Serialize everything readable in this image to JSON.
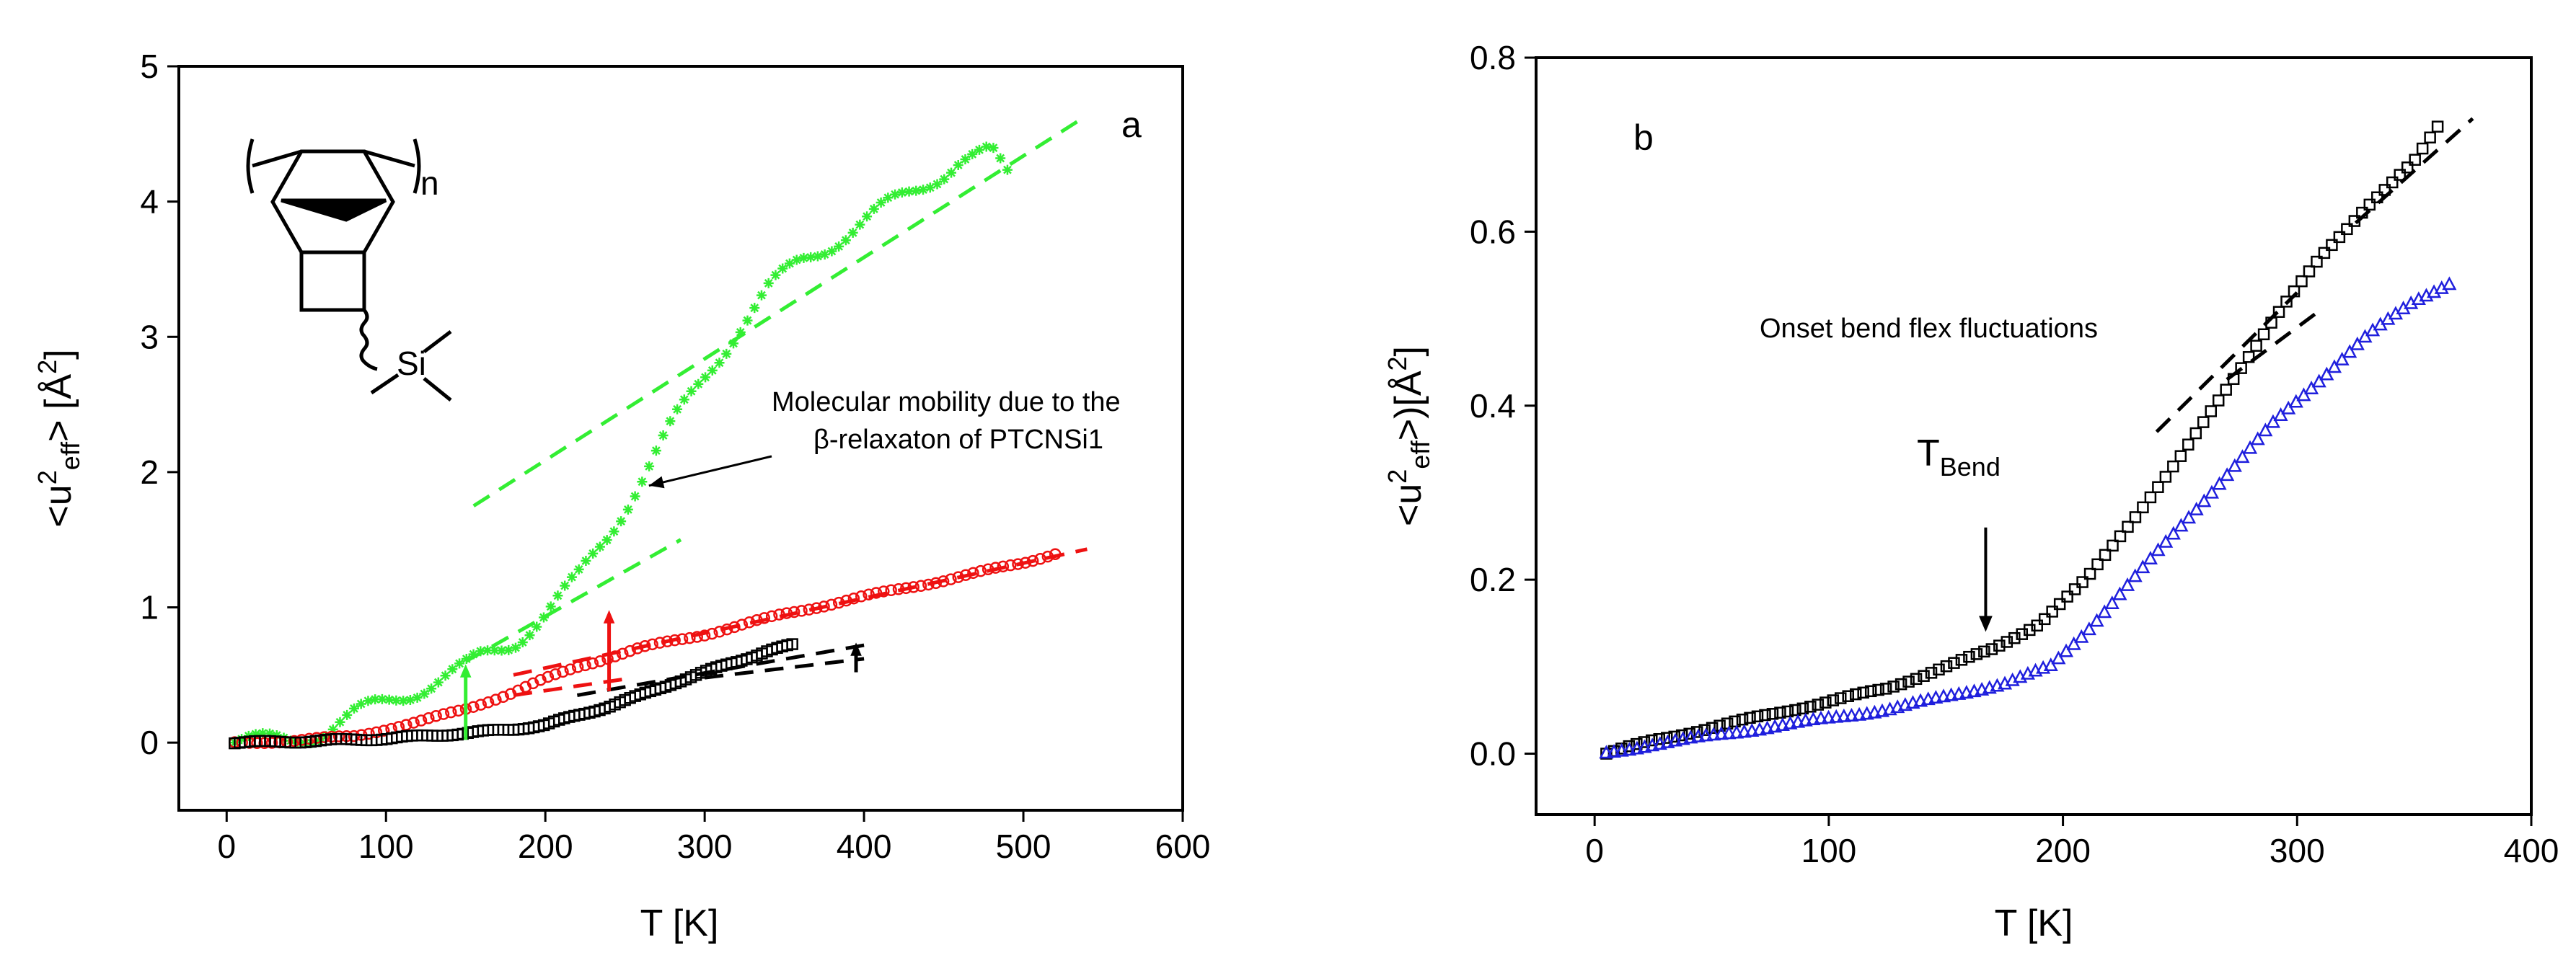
{
  "chart_data": [
    {
      "panel": "a",
      "type": "scatter",
      "title": "",
      "xlabel": "T [K]",
      "ylabel": "<u²eff> [Å²]",
      "ylabel_parts": {
        "open": "<u",
        "sup": "2",
        "sub": "eff",
        "close": "> [Å",
        "sup2": "2",
        "end": "]"
      },
      "xlim": [
        -30,
        600
      ],
      "ylim": [
        -0.5,
        5
      ],
      "xticks": [
        "0",
        "100",
        "200",
        "300",
        "400",
        "500",
        "600"
      ],
      "yticks": [
        "0",
        "1",
        "2",
        "3",
        "4",
        "5"
      ],
      "grid": false,
      "legend": "none",
      "series": [
        {
          "color": "#33ee33",
          "marker": "star",
          "x": [
            5,
            20,
            40,
            60,
            80,
            100,
            120,
            140,
            150,
            160,
            180,
            200,
            220,
            240,
            260,
            280,
            300,
            320,
            340,
            360,
            380,
            400,
            420,
            440,
            460,
            480,
            490
          ],
          "y": [
            0.0,
            0.0,
            0.03,
            0.08,
            0.2,
            0.3,
            0.4,
            0.5,
            0.55,
            0.63,
            0.75,
            0.95,
            1.2,
            1.55,
            1.95,
            2.35,
            2.7,
            3.05,
            3.35,
            3.55,
            3.7,
            3.85,
            4.0,
            4.15,
            4.3,
            4.35,
            4.2
          ]
        },
        {
          "color": "#ee1111",
          "marker": "circle",
          "x": [
            5,
            40,
            80,
            120,
            150,
            180,
            200,
            220,
            240,
            260,
            300,
            350,
            400,
            450,
            500,
            520
          ],
          "y": [
            0.0,
            0.01,
            0.05,
            0.15,
            0.25,
            0.37,
            0.47,
            0.56,
            0.63,
            0.7,
            0.8,
            0.95,
            1.08,
            1.2,
            1.33,
            1.4
          ]
        },
        {
          "color": "#000000",
          "marker": "square",
          "x": [
            5,
            50,
            100,
            150,
            180,
            200,
            220,
            240,
            260,
            280,
            300,
            320,
            340,
            355
          ],
          "y": [
            0.0,
            0.01,
            0.03,
            0.07,
            0.1,
            0.13,
            0.2,
            0.27,
            0.35,
            0.44,
            0.52,
            0.6,
            0.68,
            0.72
          ]
        }
      ],
      "fit_lines": [
        {
          "color": "#33ee33",
          "x": [
            155,
            535
          ],
          "y": [
            1.75,
            4.6
          ]
        },
        {
          "color": "#33ee33",
          "x": [
            150,
            285
          ],
          "y": [
            0.6,
            1.5
          ]
        },
        {
          "color": "#ee1111",
          "x": [
            180,
            540
          ],
          "y": [
            0.5,
            1.43
          ]
        },
        {
          "color": "#ee1111",
          "x": [
            180,
            250
          ],
          "y": [
            0.35,
            0.47
          ]
        },
        {
          "color": "#000000",
          "x": [
            220,
            400
          ],
          "y": [
            0.35,
            0.72
          ]
        },
        {
          "color": "#000000",
          "x": [
            300,
            400
          ],
          "y": [
            0.48,
            0.62
          ]
        }
      ],
      "arrows": [
        {
          "color": "#33ee33",
          "x": 150,
          "y_from": 0.02,
          "y_to": 0.58
        },
        {
          "color": "#ee1111",
          "x": 240,
          "y_from": 0.38,
          "y_to": 0.98
        },
        {
          "color": "#000000",
          "x": 395,
          "y_from": 0.52,
          "y_to": 0.74
        }
      ],
      "annotation": {
        "lines": [
          "Molecular mobility due to the",
          "β-relaxaton of PTCNSi1"
        ],
        "arrow_to": {
          "x": 265,
          "y": 1.9
        }
      },
      "structure_labels": {
        "repeat_index": "n",
        "silicon": "Si"
      }
    },
    {
      "panel": "b",
      "type": "scatter",
      "title": "",
      "xlabel": "T [K]",
      "ylabel": "<u²eff>)[Å²]",
      "ylabel_parts": {
        "open": "<u",
        "sup": "2",
        "sub": "eff",
        "close": ">)[Å",
        "sup2": "2",
        "end": "]"
      },
      "xlim": [
        -25,
        400
      ],
      "ylim": [
        -0.07,
        0.8
      ],
      "xticks": [
        "0",
        "100",
        "200",
        "300",
        "400"
      ],
      "yticks": [
        "0.0",
        "0.2",
        "0.4",
        "0.6",
        "0.8"
      ],
      "grid": false,
      "legend": "none",
      "series": [
        {
          "color": "#000000",
          "marker": "square",
          "x": [
            5,
            25,
            50,
            75,
            100,
            125,
            150,
            170,
            190,
            210,
            230,
            250,
            270,
            290,
            310,
            330,
            350,
            360
          ],
          "y": [
            0.0,
            0.015,
            0.03,
            0.045,
            0.06,
            0.075,
            0.1,
            0.12,
            0.15,
            0.2,
            0.27,
            0.34,
            0.42,
            0.5,
            0.57,
            0.63,
            0.68,
            0.72
          ]
        },
        {
          "color": "#1f1fdd",
          "marker": "triangle",
          "x": [
            5,
            25,
            50,
            75,
            100,
            125,
            150,
            175,
            195,
            210,
            230,
            250,
            270,
            290,
            310,
            330,
            350,
            365
          ],
          "y": [
            0.0,
            0.01,
            0.02,
            0.03,
            0.04,
            0.05,
            0.065,
            0.08,
            0.1,
            0.14,
            0.2,
            0.26,
            0.32,
            0.38,
            0.43,
            0.48,
            0.52,
            0.54
          ]
        }
      ],
      "fit_lines": [
        {
          "color": "#000000",
          "x": [
            240,
            300
          ],
          "y": [
            0.37,
            0.53
          ]
        },
        {
          "color": "#000000",
          "x": [
            270,
            310
          ],
          "y": [
            0.43,
            0.51
          ]
        },
        {
          "color": "#000000",
          "x": [
            325,
            375
          ],
          "y": [
            0.61,
            0.73
          ]
        }
      ],
      "panel_annotation": "Onset bend flex fluctuations",
      "tbend": {
        "main": "T",
        "sub": "Bend",
        "x": 167,
        "y_from": 0.26,
        "y_to": 0.14
      }
    }
  ]
}
